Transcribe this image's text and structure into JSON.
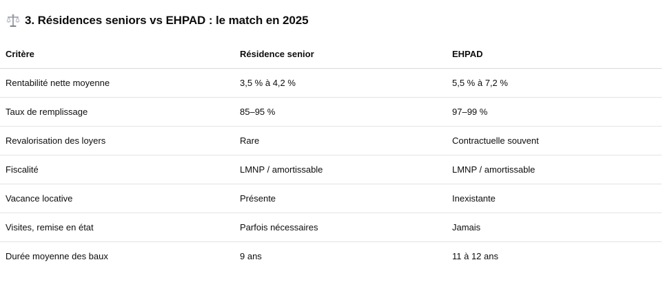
{
  "section": {
    "icon": "balance-scale-icon",
    "title": "3. Résidences seniors vs EHPAD : le match en 2025"
  },
  "table": {
    "headers": [
      "Critère",
      "Résidence senior",
      "EHPAD"
    ],
    "rows": [
      [
        "Rentabilité nette moyenne",
        "3,5 % à 4,2 %",
        "5,5 % à 7,2 %"
      ],
      [
        "Taux de remplissage",
        "85–95 %",
        "97–99 %"
      ],
      [
        "Revalorisation des loyers",
        "Rare",
        "Contractuelle souvent"
      ],
      [
        "Fiscalité",
        "LMNP / amortissable",
        "LMNP / amortissable"
      ],
      [
        "Vacance locative",
        "Présente",
        "Inexistante"
      ],
      [
        "Visites, remise en état",
        "Parfois nécessaires",
        "Jamais"
      ],
      [
        "Durée moyenne des baux",
        "9 ans",
        "11 à 12 ans"
      ]
    ]
  }
}
